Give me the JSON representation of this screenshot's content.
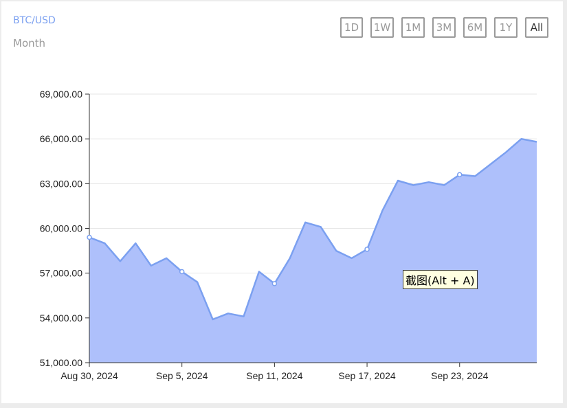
{
  "header": {
    "pair": "BTC/USD",
    "period": "Month"
  },
  "range_buttons": [
    {
      "label": "1D",
      "active": false
    },
    {
      "label": "1W",
      "active": false
    },
    {
      "label": "1M",
      "active": false
    },
    {
      "label": "3M",
      "active": false
    },
    {
      "label": "6M",
      "active": false
    },
    {
      "label": "1Y",
      "active": false
    },
    {
      "label": "All",
      "active": true
    }
  ],
  "tooltip": "截图(Alt + A)",
  "colors": {
    "line": "#7ba0f0",
    "area": "#aec0fb",
    "grid": "#e6e6e6",
    "axis": "#333333"
  },
  "chart_data": {
    "type": "area",
    "title": "",
    "xlabel": "",
    "ylabel": "",
    "ylim": [
      51000,
      69000
    ],
    "yticks": [
      51000,
      54000,
      57000,
      60000,
      63000,
      66000,
      69000
    ],
    "ytick_labels": [
      "51,000.00",
      "54,000.00",
      "57,000.00",
      "60,000.00",
      "63,000.00",
      "66,000.00",
      "69,000.00"
    ],
    "xlim": [
      "2024-08-30",
      "2024-09-28"
    ],
    "xticks": [
      {
        "date": "2024-08-30",
        "label": "Aug 30, 2024"
      },
      {
        "date": "2024-09-05",
        "label": "Sep 5, 2024"
      },
      {
        "date": "2024-09-11",
        "label": "Sep 11, 2024"
      },
      {
        "date": "2024-09-17",
        "label": "Sep 17, 2024"
      },
      {
        "date": "2024-09-23",
        "label": "Sep 23, 2024"
      }
    ],
    "grid": true,
    "series": [
      {
        "x": [
          "2024-08-30",
          "2024-08-31",
          "2024-09-01",
          "2024-09-02",
          "2024-09-03",
          "2024-09-04",
          "2024-09-05",
          "2024-09-06",
          "2024-09-07",
          "2024-09-08",
          "2024-09-09",
          "2024-09-10",
          "2024-09-11",
          "2024-09-12",
          "2024-09-13",
          "2024-09-14",
          "2024-09-15",
          "2024-09-16",
          "2024-09-17",
          "2024-09-18",
          "2024-09-19",
          "2024-09-20",
          "2024-09-21",
          "2024-09-22",
          "2024-09-23",
          "2024-09-24",
          "2024-09-25",
          "2024-09-26",
          "2024-09-27",
          "2024-09-28"
        ],
        "values": [
          59400,
          59000,
          57800,
          59000,
          57500,
          58000,
          57100,
          56400,
          53900,
          54300,
          54100,
          57100,
          56300,
          58000,
          60400,
          60100,
          58500,
          58000,
          58600,
          61200,
          63200,
          62900,
          63100,
          62900,
          63600,
          63500,
          64300,
          65100,
          66000,
          65800
        ],
        "markers": [
          "2024-08-30",
          "2024-09-05",
          "2024-09-11",
          "2024-09-17",
          "2024-09-23"
        ]
      }
    ]
  }
}
